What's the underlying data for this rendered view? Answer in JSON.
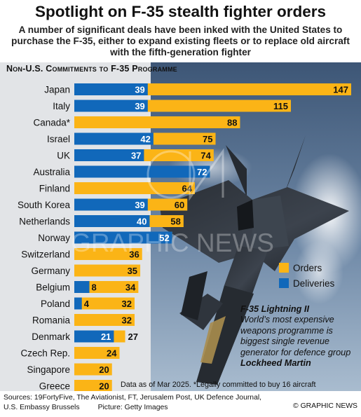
{
  "title": "Spotlight on F-35 stealth fighter orders",
  "subtitle": "A number of significant deals have been inked with the United States to purchase the F-35, either to expand existing fleets or to replace old aircraft with the fifth-generation fighter",
  "colors": {
    "orders": "#fbb416",
    "deliveries": "#1168ba",
    "panel": "#e2e4e7"
  },
  "chart_data": {
    "type": "bar",
    "orientation": "horizontal",
    "title": "Non-U.S. Commitments to F-35 Programme",
    "categories": [
      "Japan",
      "Italy",
      "Canada*",
      "Israel",
      "UK",
      "Australia",
      "Finland",
      "South Korea",
      "Netherlands",
      "Norway",
      "Switzerland",
      "Germany",
      "Belgium",
      "Poland",
      "Romania",
      "Denmark",
      "Czech Rep.",
      "Singapore",
      "Greece"
    ],
    "series": [
      {
        "name": "Orders",
        "color": "#fbb416",
        "values": [
          147,
          115,
          88,
          75,
          74,
          72,
          64,
          60,
          58,
          52,
          36,
          35,
          34,
          32,
          32,
          27,
          24,
          20,
          20
        ]
      },
      {
        "name": "Deliveries",
        "color": "#1168ba",
        "values": [
          39,
          39,
          null,
          42,
          37,
          72,
          null,
          39,
          40,
          52,
          null,
          null,
          8,
          4,
          null,
          21,
          null,
          null,
          null
        ]
      }
    ],
    "xlim": [
      0,
      147
    ]
  },
  "legend": {
    "orders_label": "Orders",
    "deliveries_label": "Deliveries"
  },
  "caption": {
    "title": "F-35 Lightning II",
    "text": "World’s most expensive weapons programme is biggest single revenue generator for defence group",
    "maker": "Lockheed Martin"
  },
  "note": "Data as of Mar 2025. *Legally committed to buy 16 aircraft",
  "sources_line1": "Sources: 19FortyFive, The Aviationist, FT, Jerusalem Post, UK Defence Journal,",
  "sources_line2a": "U.S. Embassy Brussels",
  "sources_line2b": "Picture: Getty Images",
  "credit": "© GRAPHIC NEWS",
  "watermark": "GRAPHIC NEWS"
}
